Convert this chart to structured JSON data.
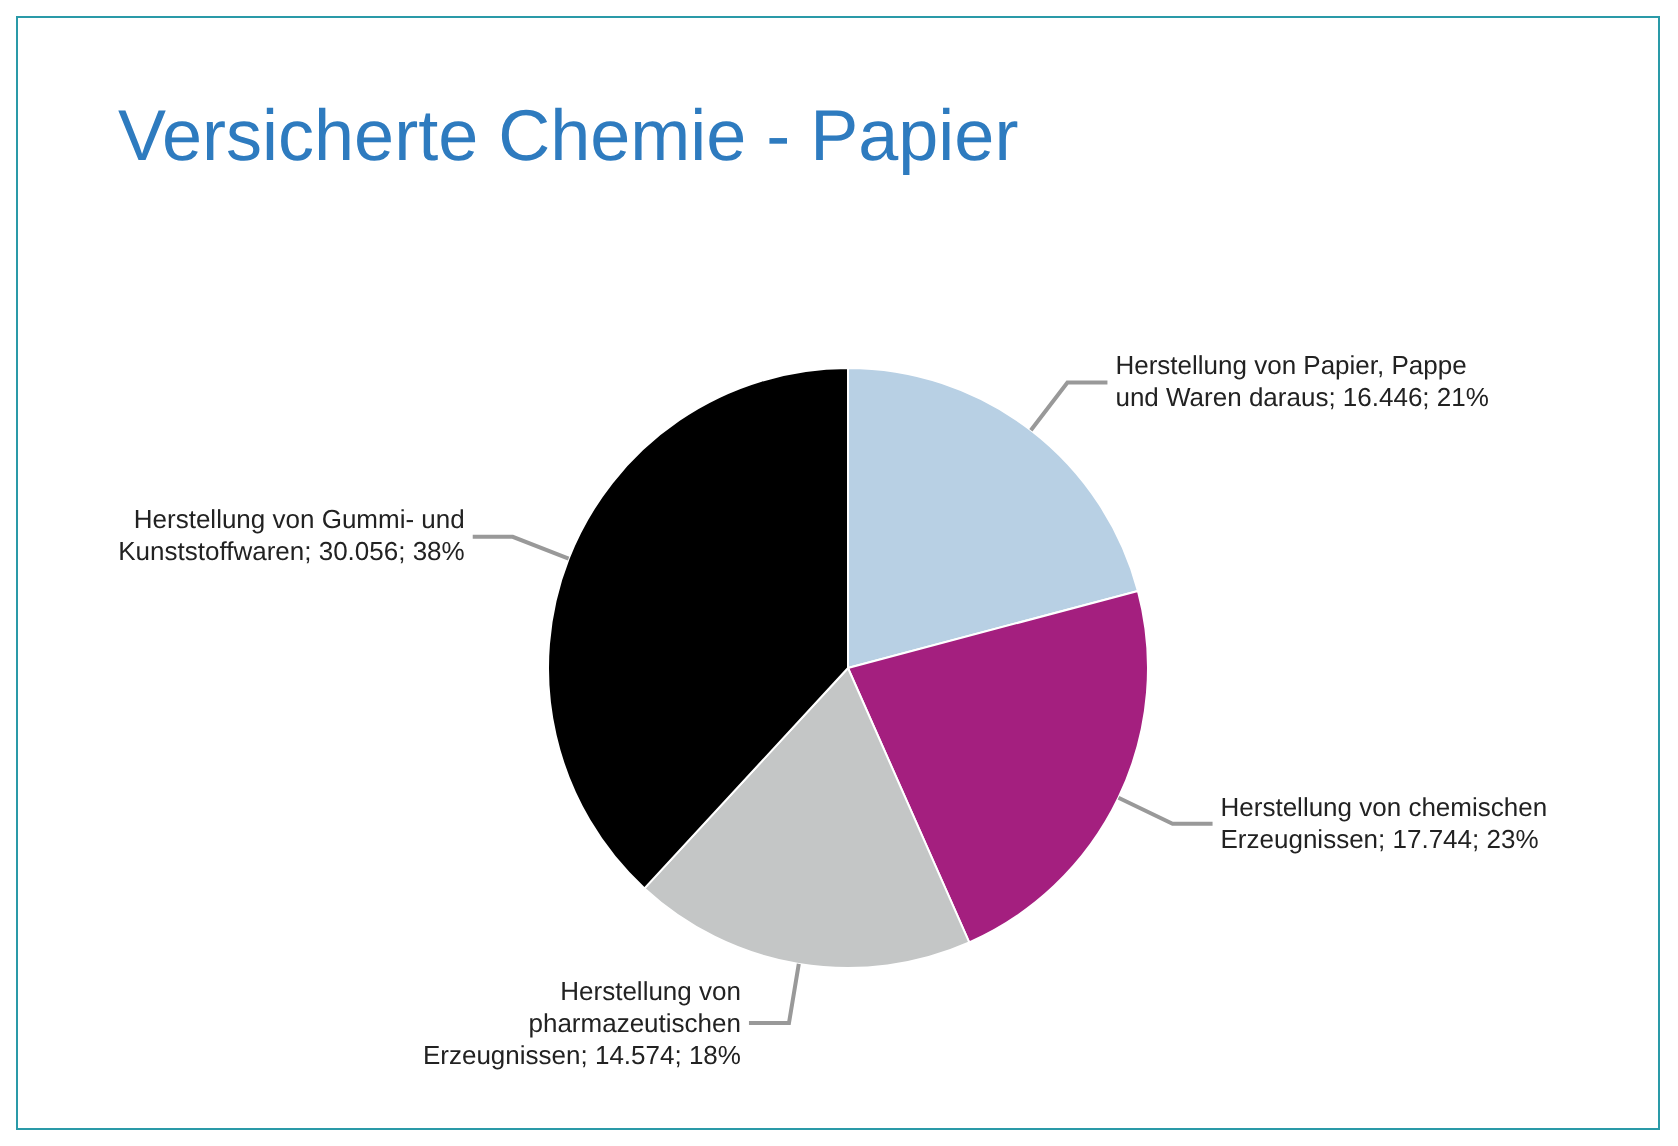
{
  "chart_data": {
    "type": "pie",
    "title": "Versicherte Chemie - Papier",
    "categories": [
      "Herstellung von Papier, Pappe und Waren daraus",
      "Herstellung von chemischen Erzeugnissen",
      "Herstellung von pharmazeutischen Erzeugnissen",
      "Herstellung von Gummi- und Kunststoffwaren"
    ],
    "values": [
      16.446,
      17.744,
      14.574,
      30.056
    ],
    "value_labels": [
      "16.446; 21%",
      "17.744; 23%",
      "14.574; 18%",
      "30.056; 38%"
    ],
    "colors": [
      "#b8d0e4",
      "#a41f7f",
      "#c4c6c6",
      "#000000"
    ],
    "legend": false
  }
}
